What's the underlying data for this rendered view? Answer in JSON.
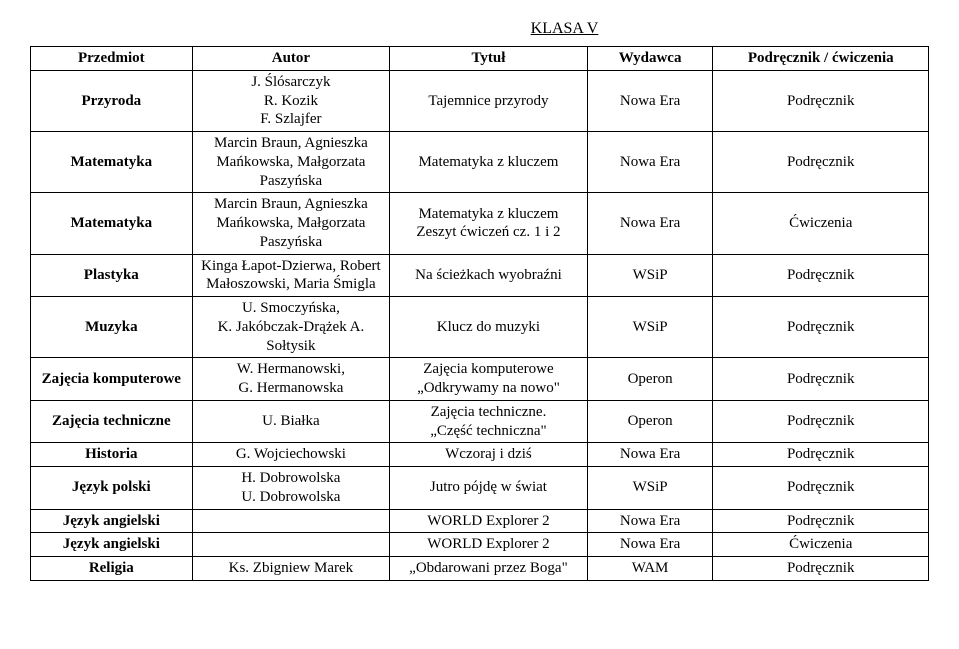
{
  "title": "KLASA V",
  "headers": {
    "subject": "Przedmiot",
    "author": "Autor",
    "book_title": "Tytuł",
    "publisher": "Wydawca",
    "type": "Podręcznik / ćwiczenia"
  },
  "rows": [
    {
      "subject": "Przyroda",
      "author": "J. Ślósarczyk\nR. Kozik\nF. Szlajfer",
      "title": "Tajemnice przyrody",
      "publisher": "Nowa Era",
      "type": "Podręcznik"
    },
    {
      "subject": "Matematyka",
      "author": "Marcin Braun, Agnieszka Mańkowska, Małgorzata Paszyńska",
      "title": "Matematyka z kluczem",
      "publisher": "Nowa Era",
      "type": "Podręcznik"
    },
    {
      "subject": "Matematyka",
      "author": "Marcin Braun, Agnieszka Mańkowska, Małgorzata Paszyńska",
      "title": "Matematyka z kluczem\nZeszyt ćwiczeń cz. 1 i 2",
      "publisher": "Nowa Era",
      "type": "Ćwiczenia"
    },
    {
      "subject": "Plastyka",
      "author": "Kinga Łapot-Dzierwa, Robert Małoszowski, Maria Śmigla",
      "title": "Na ścieżkach wyobraźni",
      "publisher": "WSiP",
      "type": "Podręcznik"
    },
    {
      "subject": "Muzyka",
      "author": "U. Smoczyńska,\nK. Jakóbczak-Drążek A. Sołtysik",
      "title": "Klucz do muzyki",
      "publisher": "WSiP",
      "type": "Podręcznik"
    },
    {
      "subject": "Zajęcia komputerowe",
      "author": "W. Hermanowski,\nG. Hermanowska",
      "title": "Zajęcia komputerowe\n„Odkrywamy na nowo\"",
      "publisher": "Operon",
      "type": "Podręcznik"
    },
    {
      "subject": "Zajęcia techniczne",
      "author": "U. Białka",
      "title": "Zajęcia techniczne.\n„Część techniczna\"",
      "publisher": "Operon",
      "type": "Podręcznik"
    },
    {
      "subject": "Historia",
      "author": "G. Wojciechowski",
      "title": "Wczoraj i dziś",
      "publisher": "Nowa Era",
      "type": "Podręcznik"
    },
    {
      "subject": "Język polski",
      "author": "H. Dobrowolska\nU. Dobrowolska",
      "title": "Jutro pójdę w świat",
      "publisher": "WSiP",
      "type": "Podręcznik"
    },
    {
      "subject": "Język angielski",
      "author": "",
      "title": "WORLD Explorer 2",
      "publisher": "Nowa Era",
      "type": "Podręcznik"
    },
    {
      "subject": "Język angielski",
      "author": "",
      "title": "WORLD Explorer 2",
      "publisher": "Nowa Era",
      "type": "Ćwiczenia"
    },
    {
      "subject": "Religia",
      "author": "Ks. Zbigniew Marek",
      "title": "„Obdarowani przez Boga\"",
      "publisher": "WAM",
      "type": "Podręcznik"
    }
  ]
}
